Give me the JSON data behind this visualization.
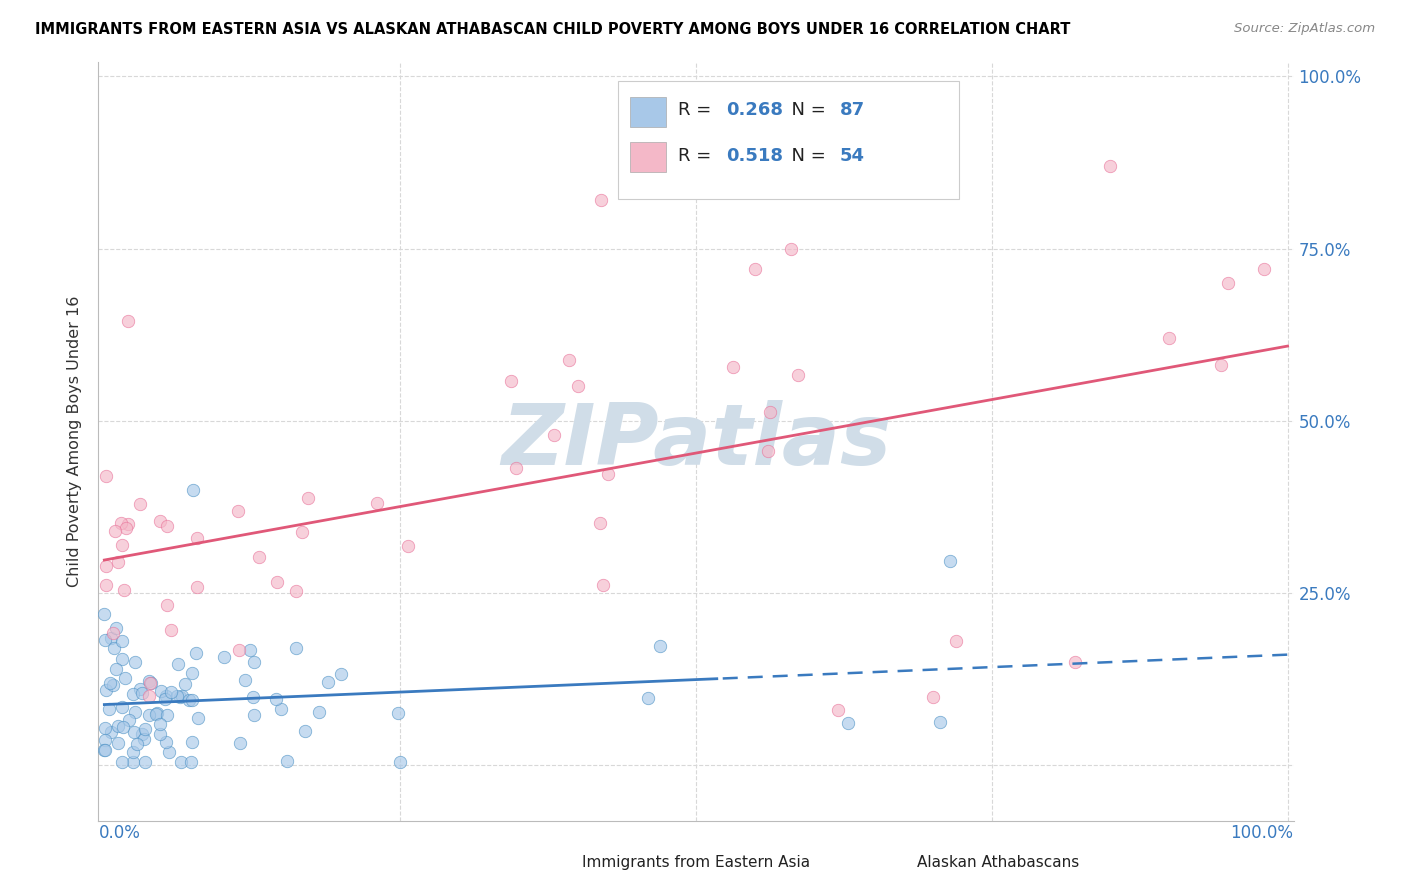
{
  "title": "IMMIGRANTS FROM EASTERN ASIA VS ALASKAN ATHABASCAN CHILD POVERTY AMONG BOYS UNDER 16 CORRELATION CHART",
  "source": "Source: ZipAtlas.com",
  "ylabel": "Child Poverty Among Boys Under 16",
  "legend_label1": "Immigrants from Eastern Asia",
  "legend_label2": "Alaskan Athabascans",
  "r1": "0.268",
  "n1": "87",
  "r2": "0.518",
  "n2": "54",
  "blue_color": "#a8c8e8",
  "pink_color": "#f4b8c8",
  "blue_edge_color": "#4a90c4",
  "pink_edge_color": "#e87098",
  "blue_line_color": "#3a7abf",
  "pink_line_color": "#e05878",
  "text_blue_color": "#3a7abf",
  "watermark_color": "#d0dde8",
  "background_color": "#ffffff",
  "grid_color": "#d8d8d8",
  "ylim_min": -0.08,
  "ylim_max": 1.02,
  "xlim_min": -0.005,
  "xlim_max": 1.005,
  "scatter_size": 80,
  "scatter_alpha": 0.65
}
